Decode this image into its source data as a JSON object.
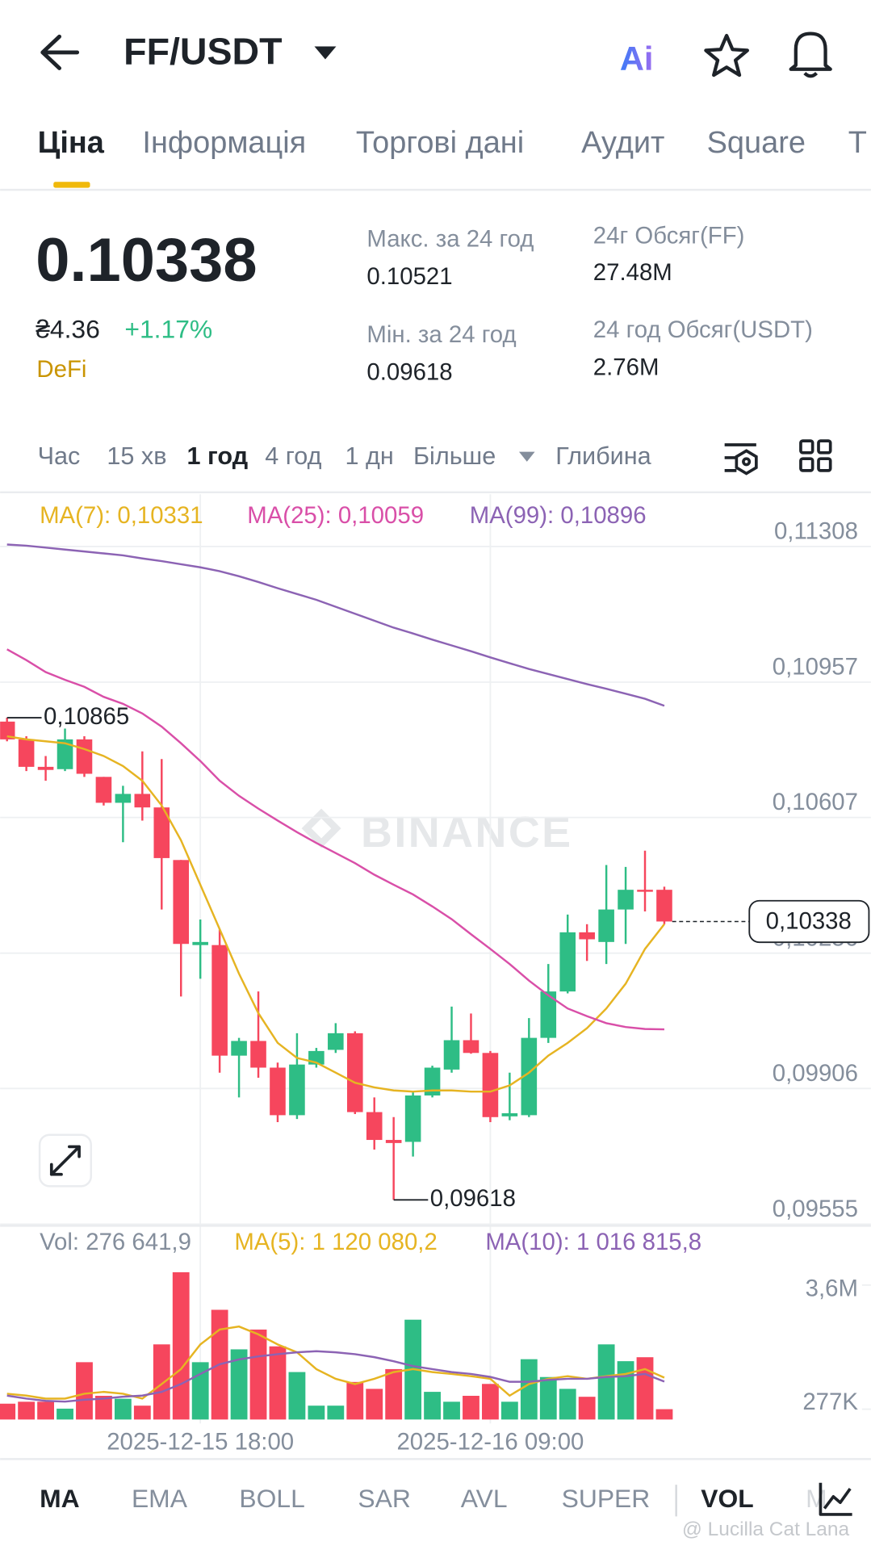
{
  "header": {
    "pair": "FF/USDT",
    "ai": "Ai"
  },
  "tabs": [
    "Ціна",
    "Інформація",
    "Торгові дані",
    "Аудит",
    "Square",
    "Т"
  ],
  "ticker": {
    "price": "0.10338",
    "fiat": "₴4.36",
    "change": "+1.17%",
    "tag": "DeFi",
    "stats": [
      {
        "label": "Макс. за 24 год",
        "value": "0.10521"
      },
      {
        "label": "Мін. за 24 год",
        "value": "0.09618"
      },
      {
        "label": "24г Обсяг(FF)",
        "value": "27.48M"
      },
      {
        "label": "24 год Обсяг(USDT)",
        "value": "2.76M"
      }
    ]
  },
  "intervals": [
    "Час",
    "15 хв",
    "1 год",
    "4 год",
    "1 дн",
    "Більше",
    "Глибина"
  ],
  "price_chart": {
    "type": "candlestick",
    "categories": [
      null,
      null,
      null,
      null,
      null,
      null,
      null,
      null,
      null,
      null,
      "2025-12-15 18:00",
      null,
      null,
      null,
      null,
      null,
      null,
      null,
      null,
      null,
      null,
      null,
      null,
      null,
      null,
      "2025-12-16 09:00",
      null,
      null,
      null,
      null,
      null,
      null,
      null,
      null,
      null
    ],
    "ohlc": [
      [
        0.10855,
        0.10865,
        0.10804,
        0.10809
      ],
      [
        0.10809,
        0.10817,
        0.10727,
        0.10738
      ],
      [
        0.10738,
        0.10766,
        0.10702,
        0.1073
      ],
      [
        0.10732,
        0.10837,
        0.10727,
        0.10809
      ],
      [
        0.10809,
        0.10817,
        0.10712,
        0.1072
      ],
      [
        0.10712,
        0.10712,
        0.10638,
        0.10645
      ],
      [
        0.10645,
        0.10689,
        0.10543,
        0.10668
      ],
      [
        0.10668,
        0.10778,
        0.10599,
        0.10633
      ],
      [
        0.10633,
        0.10758,
        0.10369,
        0.10502
      ],
      [
        0.10497,
        0.10497,
        0.10144,
        0.1028
      ],
      [
        0.10277,
        0.10343,
        0.1019,
        0.10285
      ],
      [
        0.10277,
        0.10318,
        0.09947,
        0.09991
      ],
      [
        0.09991,
        0.10037,
        0.09883,
        0.10029
      ],
      [
        0.10029,
        0.10157,
        0.09934,
        0.0996
      ],
      [
        0.0996,
        0.09973,
        0.09819,
        0.09837
      ],
      [
        0.09837,
        0.10049,
        0.09827,
        0.09968
      ],
      [
        0.09968,
        0.10011,
        0.0996,
        0.10003
      ],
      [
        0.10006,
        0.10075,
        0.09998,
        0.10049
      ],
      [
        0.10049,
        0.10054,
        0.0984,
        0.09845
      ],
      [
        0.09845,
        0.09883,
        0.09748,
        0.09773
      ],
      [
        0.09773,
        0.09832,
        0.09618,
        0.09765
      ],
      [
        0.09768,
        0.09896,
        0.0973,
        0.09888
      ],
      [
        0.09888,
        0.09965,
        0.09883,
        0.0996
      ],
      [
        0.09955,
        0.10118,
        0.09947,
        0.10031
      ],
      [
        0.10031,
        0.101,
        0.09996,
        0.09998
      ],
      [
        0.09998,
        0.10003,
        0.09819,
        0.09832
      ],
      [
        0.09834,
        0.09947,
        0.09824,
        0.09842
      ],
      [
        0.09837,
        0.10088,
        0.09832,
        0.10037
      ],
      [
        0.10037,
        0.10228,
        0.10024,
        0.10157
      ],
      [
        0.10157,
        0.10356,
        0.10152,
        0.1031
      ],
      [
        0.1031,
        0.10331,
        0.10236,
        0.10292
      ],
      [
        0.10285,
        0.10484,
        0.10228,
        0.10369
      ],
      [
        0.10369,
        0.10479,
        0.1028,
        0.1042
      ],
      [
        0.1042,
        0.10521,
        0.10364,
        0.10418
      ],
      [
        0.1042,
        0.10428,
        0.10331,
        0.10338
      ]
    ],
    "up_color": "#2ebd85",
    "down_color": "#f6465d",
    "ylim": [
      0.09551,
      0.11443
    ],
    "yticks": [
      {
        "value": 0.11308,
        "label": "0,11308"
      },
      {
        "value": 0.10957,
        "label": "0,10957"
      },
      {
        "value": 0.10607,
        "label": "0,10607"
      },
      {
        "value": 0.10256,
        "label": "0,10256"
      },
      {
        "value": 0.09906,
        "label": "0,09906"
      },
      {
        "value": 0.09555,
        "label": "0,09555"
      }
    ],
    "grid": true,
    "ma_lines": [
      {
        "label": "MA(7): 0,10331",
        "color": "#e6b422",
        "values": [
          0.10817,
          0.10809,
          0.10804,
          0.10799,
          0.10784,
          0.10766,
          0.1074,
          0.10702,
          0.10638,
          0.10548,
          0.10433,
          0.10318,
          0.10203,
          0.10101,
          0.10024,
          0.09985,
          0.09973,
          0.09947,
          0.09921,
          0.09909,
          0.09901,
          0.09898,
          0.09901,
          0.09901,
          0.09898,
          0.09898,
          0.09914,
          0.09947,
          0.09991,
          0.10024,
          0.10062,
          0.10113,
          0.10177,
          0.10267,
          0.10331
        ]
      },
      {
        "label": "MA(25): 0,10059",
        "color": "#d94fa8",
        "values": [
          0.11042,
          0.11014,
          0.10983,
          0.10963,
          0.10945,
          0.10919,
          0.10901,
          0.10876,
          0.10842,
          0.10799,
          0.10753,
          0.10702,
          0.10663,
          0.1063,
          0.10599,
          0.10569,
          0.10541,
          0.10515,
          0.10489,
          0.10459,
          0.10433,
          0.10408,
          0.10377,
          0.10344,
          0.10305,
          0.10267,
          0.10228,
          0.10185,
          0.10147,
          0.10113,
          0.10093,
          0.10075,
          0.10065,
          0.1006,
          0.10059
        ]
      },
      {
        "label": "MA(99): 0,10896",
        "color": "#8c63b4",
        "values": [
          0.11313,
          0.1131,
          0.11305,
          0.113,
          0.11295,
          0.1129,
          0.11285,
          0.11277,
          0.1127,
          0.11262,
          0.11254,
          0.11244,
          0.11231,
          0.11216,
          0.112,
          0.11185,
          0.1117,
          0.11152,
          0.11134,
          0.11116,
          0.11098,
          0.11083,
          0.11067,
          0.11052,
          0.11037,
          0.11021,
          0.11006,
          0.10991,
          0.10978,
          0.10965,
          0.10952,
          0.1094,
          0.10927,
          0.10914,
          0.10896
        ]
      }
    ],
    "high_label": {
      "value": 0.10865,
      "label": "0,10865"
    },
    "low_label": {
      "value": 0.09618,
      "label": "0,09618"
    },
    "last_price": {
      "value": 0.10338,
      "label": "0,10338"
    },
    "watermark": "BINANCE"
  },
  "volume_chart": {
    "type": "bar",
    "legend": "Vol: 276 641,9",
    "values": [
      424000,
      476000,
      476000,
      291000,
      1535000,
      635000,
      556000,
      371000,
      2012000,
      3944000,
      1535000,
      2938000,
      1879000,
      2409000,
      1959000,
      1271000,
      371000,
      371000,
      1006000,
      821000,
      1350000,
      2673000,
      741000,
      476000,
      635000,
      953000,
      476000,
      1615000,
      1138000,
      821000,
      609000,
      2012000,
      1562000,
      1668000,
      276641.9
    ],
    "ylim": [
      0,
      5056000
    ],
    "yticks": [
      {
        "value": 3600000,
        "label": "3,6M"
      },
      {
        "value": 277000,
        "label": "277K"
      }
    ],
    "ma_lines": [
      {
        "label": "MA(5): 1 120 080,2",
        "color": "#e6b422",
        "values": [
          690000,
          640000,
          560000,
          560000,
          690000,
          740000,
          690000,
          560000,
          950000,
          1350000,
          2010000,
          2410000,
          2490000,
          2280000,
          2010000,
          1800000,
          1350000,
          1090000,
          950000,
          1090000,
          1270000,
          1350000,
          1270000,
          1220000,
          1160000,
          1090000,
          640000,
          950000,
          1090000,
          1160000,
          1090000,
          1160000,
          1220000,
          1350000,
          1120080.2
        ]
      },
      {
        "label": "MA(10): 1 016 815,8",
        "color": "#8c63b4",
        "values": [
          640000,
          560000,
          500000,
          480000,
          530000,
          560000,
          610000,
          640000,
          740000,
          950000,
          1220000,
          1480000,
          1610000,
          1690000,
          1750000,
          1800000,
          1830000,
          1800000,
          1750000,
          1670000,
          1560000,
          1430000,
          1350000,
          1270000,
          1220000,
          1140000,
          1010000,
          1010000,
          1060000,
          1090000,
          1090000,
          1140000,
          1160000,
          1220000,
          1016815.8
        ]
      }
    ]
  },
  "indicators": [
    "MA",
    "EMA",
    "BOLL",
    "SAR",
    "AVL",
    "SUPER",
    "VOL",
    "M"
  ],
  "watermark": "@ Lucilla Cat Lana"
}
